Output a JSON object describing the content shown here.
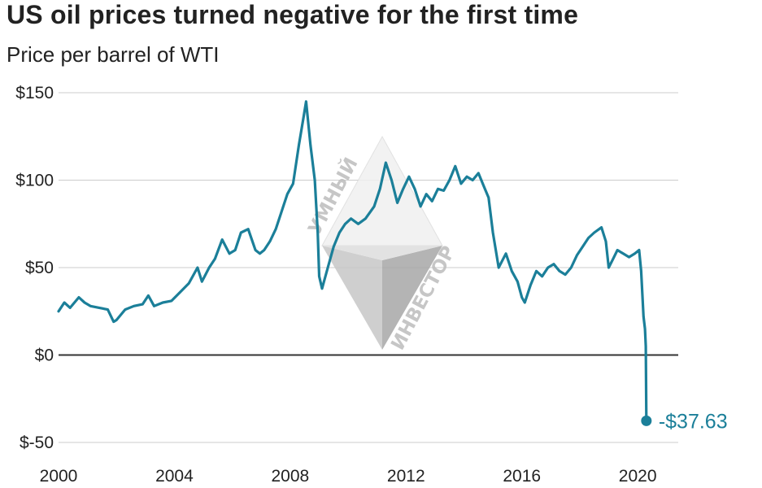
{
  "title": "US oil prices turned negative for the first time",
  "subtitle": "Price per barrel of WTI",
  "watermark": [
    "УМНЫЙ",
    "ИНВЕСТОР"
  ],
  "colors": {
    "line": "#1b7f99",
    "grid": "#cccccc",
    "zero_line": "#333333",
    "text": "#222222",
    "watermark": "#bdbdbd"
  },
  "chart_data": {
    "type": "line",
    "title": "US oil prices turned negative for the first time",
    "subtitle": "Price per barrel of WTI",
    "xlabel": "",
    "ylabel": "",
    "xlim": [
      2000,
      2021.4
    ],
    "ylim": [
      -50,
      150
    ],
    "x_ticks": [
      {
        "value": 2000,
        "label": "2000"
      },
      {
        "value": 2004,
        "label": "2004"
      },
      {
        "value": 2008,
        "label": "2008"
      },
      {
        "value": 2012,
        "label": "2012"
      },
      {
        "value": 2016,
        "label": "2016"
      },
      {
        "value": 2020,
        "label": "2020"
      }
    ],
    "y_ticks": [
      {
        "value": 150,
        "label": "$150"
      },
      {
        "value": 100,
        "label": "$100"
      },
      {
        "value": 50,
        "label": "$50"
      },
      {
        "value": 0,
        "label": "$0"
      },
      {
        "value": -50,
        "label": "$-50"
      }
    ],
    "grid": true,
    "legend": "none",
    "end_annotation": {
      "x": 2020.3,
      "y": -37.63,
      "label": "-$37.63"
    },
    "series": [
      {
        "x": [
          2000.0,
          2000.2,
          2000.4,
          2000.7,
          2000.9,
          2001.1,
          2001.4,
          2001.7,
          2001.9,
          2002.0,
          2002.3,
          2002.6,
          2002.9,
          2003.1,
          2003.3,
          2003.6,
          2003.9,
          2004.2,
          2004.5,
          2004.8,
          2004.95,
          2005.2,
          2005.4,
          2005.65,
          2005.9,
          2006.1,
          2006.3,
          2006.55,
          2006.8,
          2006.95,
          2007.1,
          2007.3,
          2007.5,
          2007.7,
          2007.9,
          2008.1,
          2008.3,
          2008.45,
          2008.55,
          2008.7,
          2008.85,
          2008.95,
          2009.0,
          2009.1,
          2009.3,
          2009.5,
          2009.7,
          2009.9,
          2010.1,
          2010.35,
          2010.6,
          2010.9,
          2011.1,
          2011.3,
          2011.5,
          2011.7,
          2011.9,
          2012.1,
          2012.3,
          2012.5,
          2012.7,
          2012.9,
          2013.1,
          2013.3,
          2013.5,
          2013.7,
          2013.9,
          2014.1,
          2014.3,
          2014.5,
          2014.7,
          2014.85,
          2015.0,
          2015.2,
          2015.45,
          2015.65,
          2015.85,
          2016.0,
          2016.1,
          2016.3,
          2016.5,
          2016.7,
          2016.9,
          2017.1,
          2017.3,
          2017.5,
          2017.7,
          2017.9,
          2018.1,
          2018.3,
          2018.5,
          2018.75,
          2018.9,
          2019.0,
          2019.15,
          2019.3,
          2019.5,
          2019.7,
          2019.9,
          2020.05,
          2020.12,
          2020.2,
          2020.25,
          2020.28,
          2020.3
        ],
        "y": [
          25,
          30,
          27,
          33,
          30,
          28,
          27,
          26,
          19,
          20,
          26,
          28,
          29,
          34,
          28,
          30,
          31,
          36,
          41,
          50,
          42,
          50,
          55,
          66,
          58,
          60,
          70,
          72,
          60,
          58,
          60,
          65,
          72,
          82,
          92,
          98,
          120,
          135,
          145,
          120,
          100,
          70,
          45,
          38,
          50,
          62,
          70,
          75,
          78,
          75,
          78,
          85,
          95,
          110,
          100,
          87,
          95,
          102,
          95,
          85,
          92,
          88,
          95,
          94,
          100,
          108,
          98,
          102,
          100,
          104,
          96,
          90,
          70,
          50,
          58,
          48,
          42,
          33,
          30,
          40,
          48,
          45,
          50,
          52,
          48,
          46,
          50,
          57,
          62,
          67,
          70,
          73,
          65,
          50,
          55,
          60,
          58,
          56,
          58,
          60,
          48,
          22,
          15,
          5,
          -37.63
        ]
      }
    ]
  }
}
